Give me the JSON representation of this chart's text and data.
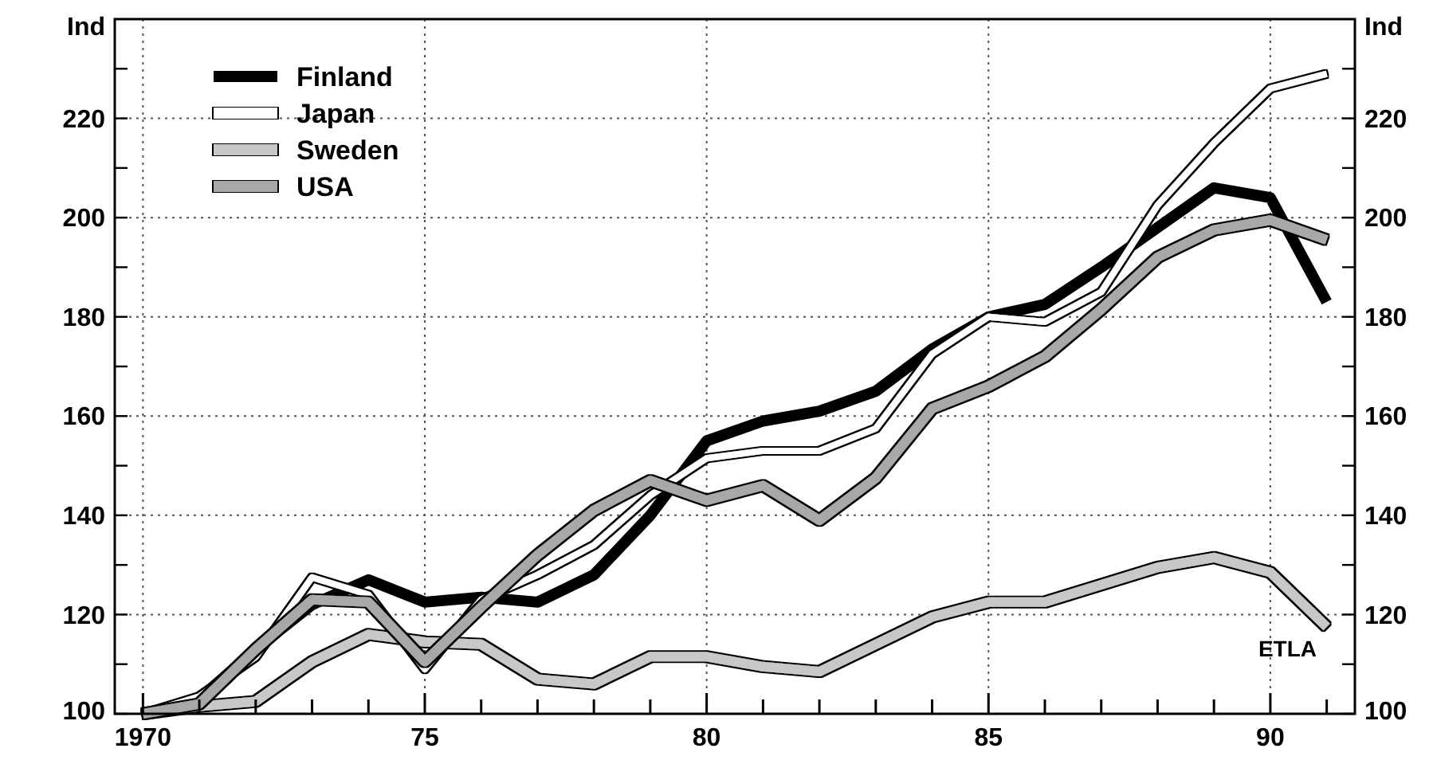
{
  "chart_data": {
    "type": "line",
    "ylabel": "Ind",
    "y2label": "Ind",
    "x": [
      1970,
      1971,
      1972,
      1973,
      1974,
      1975,
      1976,
      1977,
      1978,
      1979,
      1980,
      1981,
      1982,
      1983,
      1984,
      1985,
      1986,
      1987,
      1988,
      1989,
      1990,
      1991
    ],
    "series": [
      {
        "name": "Finland",
        "color": "#000000",
        "values": [
          100,
          103,
          113,
          122,
          127,
          122.5,
          123.5,
          122.5,
          128,
          140,
          155,
          159,
          161,
          165,
          173.5,
          180,
          182.5,
          190,
          198,
          206,
          204,
          183
        ]
      },
      {
        "name": "Japan",
        "color": "#ffffff",
        "values": [
          100,
          103.5,
          111.5,
          127.5,
          124,
          109,
          123,
          128,
          134,
          144,
          151.5,
          153,
          153,
          157.5,
          172.5,
          180,
          179,
          185,
          202.5,
          215,
          226,
          229
        ]
      },
      {
        "name": "Sweden",
        "color": "#c8c8c8",
        "values": [
          100,
          101.5,
          102.5,
          110.5,
          116,
          114.5,
          114,
          107,
          106,
          111.5,
          111.5,
          109.5,
          108.5,
          114,
          119.5,
          122.5,
          122.5,
          126,
          129.5,
          131.5,
          128.5,
          117.5
        ]
      },
      {
        "name": "USA",
        "color": "#a8a8a8",
        "values": [
          100,
          102,
          113,
          123,
          122.5,
          110.5,
          121.5,
          132,
          141,
          147,
          143,
          146,
          139,
          147.5,
          161.5,
          166,
          172,
          181.5,
          192,
          197.5,
          199.5,
          195.5
        ]
      }
    ],
    "xlim": [
      1969.5,
      1991.5
    ],
    "xticks": [
      {
        "value": 1970,
        "label": "1970"
      },
      {
        "value": 1971,
        "label": null
      },
      {
        "value": 1972,
        "label": null
      },
      {
        "value": 1973,
        "label": null
      },
      {
        "value": 1974,
        "label": null
      },
      {
        "value": 1975,
        "label": "75"
      },
      {
        "value": 1976,
        "label": null
      },
      {
        "value": 1977,
        "label": null
      },
      {
        "value": 1978,
        "label": null
      },
      {
        "value": 1979,
        "label": null
      },
      {
        "value": 1980,
        "label": "80"
      },
      {
        "value": 1981,
        "label": null
      },
      {
        "value": 1982,
        "label": null
      },
      {
        "value": 1983,
        "label": null
      },
      {
        "value": 1984,
        "label": null
      },
      {
        "value": 1985,
        "label": "85"
      },
      {
        "value": 1986,
        "label": null
      },
      {
        "value": 1987,
        "label": null
      },
      {
        "value": 1988,
        "label": null
      },
      {
        "value": 1989,
        "label": null
      },
      {
        "value": 1990,
        "label": "90"
      },
      {
        "value": 1991,
        "label": null
      }
    ],
    "ylim": [
      100,
      240
    ],
    "yticks": [
      100,
      {
        "value": 110,
        "label": null
      },
      120,
      {
        "value": 130,
        "label": null
      },
      140,
      {
        "value": 150,
        "label": null
      },
      160,
      {
        "value": 170,
        "label": null
      },
      180,
      {
        "value": 190,
        "label": null
      },
      200,
      {
        "value": 210,
        "label": null
      },
      220,
      {
        "value": 230,
        "label": null
      }
    ],
    "y2lim": [
      100,
      240
    ],
    "y2ticks": [
      100,
      {
        "value": 110,
        "label": null
      },
      120,
      {
        "value": 130,
        "label": null
      },
      140,
      {
        "value": 150,
        "label": null
      },
      160,
      {
        "value": 170,
        "label": null
      },
      180,
      {
        "value": 190,
        "label": null
      },
      200,
      {
        "value": 210,
        "label": null
      },
      220,
      {
        "value": 230,
        "label": null
      }
    ],
    "grid": true,
    "legend": "top left",
    "marker": "none",
    "line_style": "solid",
    "annotations": [
      "ETLA"
    ]
  }
}
